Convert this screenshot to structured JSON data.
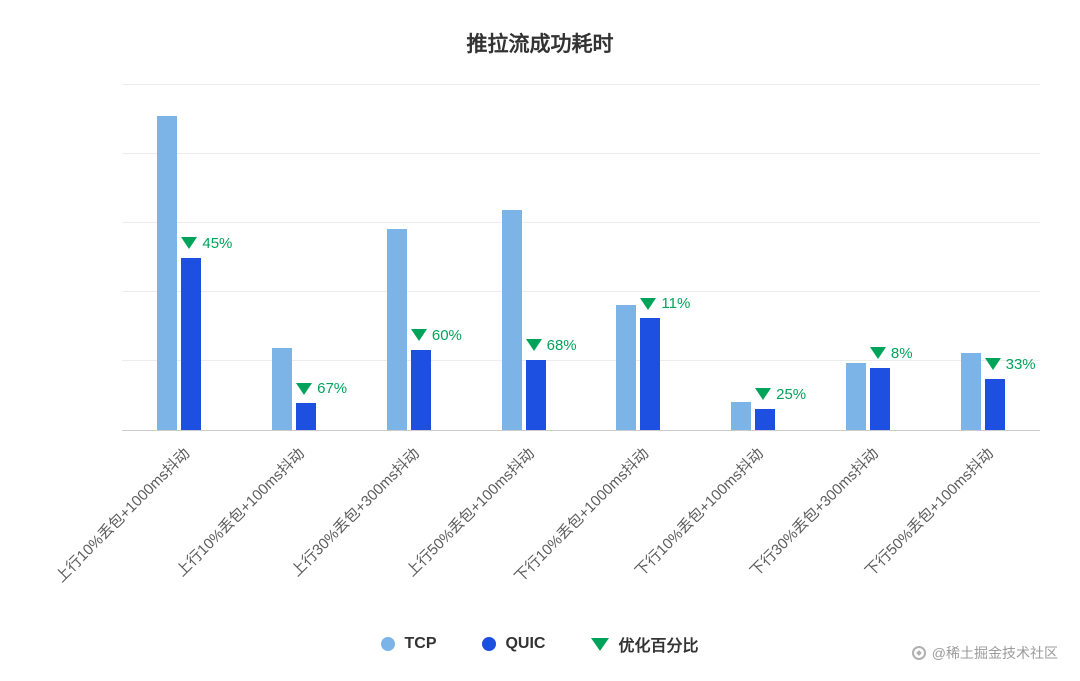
{
  "title": "推拉流成功耗时",
  "chart_data": {
    "type": "bar",
    "title": "推拉流成功耗时",
    "categories": [
      "上行10%丢包+1000ms抖动",
      "上行10%丢包+100ms抖动",
      "上行30%丢包+300ms抖动",
      "上行50%丢包+100ms抖动",
      "下行10%丢包+1000ms抖动",
      "下行10%丢包+100ms抖动",
      "下行30%丢包+300ms抖动",
      "下行50%丢包+100ms抖动"
    ],
    "series": [
      {
        "name": "TCP",
        "color": "#7db4e8",
        "values": [
          100,
          26,
          64,
          70,
          40,
          9,
          21.5,
          24.5
        ]
      },
      {
        "name": "QUIC",
        "color": "#1d4fe0",
        "values": [
          55,
          8.6,
          25.6,
          22.4,
          35.6,
          6.8,
          19.8,
          16.4
        ]
      }
    ],
    "annotations": {
      "name": "优化百分比",
      "color": "#00a35a",
      "values": [
        "45%",
        "67%",
        "60%",
        "68%",
        "11%",
        "25%",
        "8%",
        "33%"
      ]
    },
    "ylim": [
      0,
      110
    ],
    "xlabel": "",
    "ylabel": "",
    "grid": true,
    "legend_position": "bottom",
    "note": "values are relative heights normalized to TCP max = 100; no numeric y-axis labels are shown in the chart"
  },
  "legend": {
    "items": [
      {
        "label": "TCP",
        "swatch": "circle",
        "color": "#7db4e8"
      },
      {
        "label": "QUIC",
        "swatch": "circle",
        "color": "#1d4fe0"
      },
      {
        "label": "优化百分比",
        "swatch": "triangle-down",
        "color": "#00a35a"
      }
    ]
  },
  "watermark": {
    "text": "@稀土掘金技术社区"
  }
}
